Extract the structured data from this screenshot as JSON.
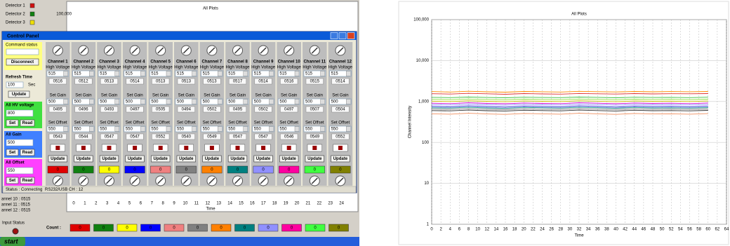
{
  "window": {
    "detectors": [
      {
        "label": "Detector 1",
        "color": "#d01010"
      },
      {
        "label": "Detector 2",
        "color": "#108010"
      },
      {
        "label": "Detector 3",
        "color": "#f0e000"
      }
    ],
    "plot_title": "All Plots",
    "plot_ytick": "100,000",
    "plot_xticks": [
      "0",
      "1",
      "2",
      "3",
      "4",
      "5",
      "6",
      "7",
      "8",
      "9",
      "10",
      "11",
      "12",
      "13",
      "14",
      "15",
      "16",
      "17",
      "18",
      "19",
      "20",
      "21",
      "22",
      "23",
      "24"
    ],
    "plot_xlabel": "Time",
    "channel_list": [
      "annel 10 : 0515",
      "annel 11 : 0515",
      "annel 12 : 0515"
    ],
    "input_status": "Input Status",
    "count_label": "Count :",
    "taskbar_start": "start"
  },
  "control_panel": {
    "title": "Control Panel",
    "command_status": "Command status",
    "disconnect": "Disconnect",
    "refresh_time": "Refresh Time",
    "refresh_value": "100",
    "sec": "Sec",
    "update": "Update",
    "set": "Set",
    "read": "Read",
    "voltage_label": "All HV voltage",
    "voltage_value": "800",
    "gain_label": "All Gain",
    "gain_value": "500",
    "offset_label": "All Offset",
    "offset_value": "550",
    "hv_label": "High Voltage",
    "set_gain_label": "Set Gain",
    "set_offset_label": "Set Offset",
    "status": "Status : Connecting",
    "port": "RS232/USB CH : 12",
    "channels": [
      {
        "name": "Channel 1",
        "hv": "515",
        "hv_read": "0516",
        "gain": "500",
        "gain_read": "0495",
        "offset": "550",
        "offset_read": "0543",
        "swatch": "0",
        "color": "#e00000"
      },
      {
        "name": "Channel 2",
        "hv": "515",
        "hv_read": "0512",
        "gain": "500",
        "gain_read": "0496",
        "offset": "550",
        "offset_read": "0544",
        "swatch": "0",
        "color": "#108010"
      },
      {
        "name": "Channel 3",
        "hv": "515",
        "hv_read": "0513",
        "gain": "500",
        "gain_read": "0493",
        "offset": "550",
        "offset_read": "0547",
        "swatch": "0",
        "color": "#ffff00"
      },
      {
        "name": "Channel 4",
        "hv": "515",
        "hv_read": "0514",
        "gain": "500",
        "gain_read": "0497",
        "offset": "550",
        "offset_read": "0547",
        "swatch": "0",
        "color": "#0000ff"
      },
      {
        "name": "Channel 5",
        "hv": "515",
        "hv_read": "0513",
        "gain": "500",
        "gain_read": "0505",
        "offset": "550",
        "offset_read": "0552",
        "swatch": "0",
        "color": "#f08080"
      },
      {
        "name": "Channel 6",
        "hv": "515",
        "hv_read": "0513",
        "gain": "500",
        "gain_read": "0494",
        "offset": "550",
        "offset_read": "0540",
        "swatch": "0",
        "color": "#808080"
      },
      {
        "name": "Channel 7",
        "hv": "515",
        "hv_read": "0513",
        "gain": "500",
        "gain_read": "0502",
        "offset": "550",
        "offset_read": "0549",
        "swatch": "0",
        "color": "#ff8000"
      },
      {
        "name": "Channel 8",
        "hv": "515",
        "hv_read": "0517",
        "gain": "500",
        "gain_read": "0495",
        "offset": "550",
        "offset_read": "0547",
        "swatch": "0",
        "color": "#008080"
      },
      {
        "name": "Channel 9",
        "hv": "515",
        "hv_read": "0514",
        "gain": "500",
        "gain_read": "0502",
        "offset": "550",
        "offset_read": "0547",
        "swatch": "0",
        "color": "#9090ff"
      },
      {
        "name": "Channel 10",
        "hv": "515",
        "hv_read": "0516",
        "gain": "500",
        "gain_read": "0497",
        "offset": "550",
        "offset_read": "0546",
        "swatch": "0",
        "color": "#ff00a0"
      },
      {
        "name": "Channel 11",
        "hv": "515",
        "hv_read": "0515",
        "gain": "500",
        "gain_read": "0507",
        "offset": "550",
        "offset_read": "0549",
        "swatch": "0",
        "color": "#40ff40"
      },
      {
        "name": "Channel 12",
        "hv": "515",
        "hv_read": "0514",
        "gain": "500",
        "gain_read": "0504",
        "offset": "550",
        "offset_read": "0552",
        "swatch": "0",
        "color": "#808000"
      }
    ]
  },
  "chart_data": {
    "type": "line",
    "title": "All Plots",
    "x_label": "Time",
    "y_label": "Channel Intensity",
    "log_y": true,
    "grid": true,
    "xlim": [
      0,
      64
    ],
    "xticks": [
      0,
      2,
      4,
      6,
      8,
      10,
      12,
      14,
      16,
      18,
      20,
      22,
      24,
      26,
      28,
      30,
      32,
      34,
      36,
      38,
      40,
      42,
      44,
      46,
      48,
      50,
      52,
      54,
      56,
      58,
      60,
      62,
      64
    ],
    "ylim": [
      1,
      100000
    ],
    "yticks": [
      1,
      10,
      100,
      {
        "value": 1000,
        "label": "1,000"
      },
      {
        "value": 10000,
        "label": "10,000"
      },
      {
        "value": 100000,
        "label": "100,000"
      }
    ],
    "x": [
      0,
      4,
      8,
      12,
      16,
      20,
      24,
      28,
      32,
      36,
      40,
      44,
      48,
      52,
      56,
      60
    ],
    "series": [
      {
        "color": "#ff8c00",
        "values": [
          1750,
          1700,
          1780,
          1720,
          1690,
          1760,
          1730,
          1700,
          1770,
          1740,
          1710,
          1760,
          1720,
          1750,
          1730,
          1760
        ]
      },
      {
        "color": "#e03030",
        "values": [
          1550,
          1520,
          1580,
          1540,
          1500,
          1560,
          1530,
          1510,
          1570,
          1540,
          1520,
          1560,
          1530,
          1550,
          1540,
          1560
        ]
      },
      {
        "color": "#40c040",
        "values": [
          1260,
          1240,
          1280,
          1250,
          1230,
          1270,
          1250,
          1240,
          1280,
          1260,
          1230,
          1270,
          1250,
          1260,
          1240,
          1270
        ]
      },
      {
        "color": "#90e040",
        "values": [
          1130,
          1110,
          1150,
          1120,
          1100,
          1140,
          1120,
          1110,
          1150,
          1130,
          1100,
          1140,
          1120,
          1130,
          1110,
          1140
        ]
      },
      {
        "color": "#d0c000",
        "values": [
          1020,
          1000,
          1040,
          1010,
          990,
          1030,
          1010,
          1000,
          1040,
          1020,
          990,
          1030,
          1010,
          1020,
          1000,
          1030
        ]
      },
      {
        "color": "#d000d0",
        "values": [
          910,
          890,
          930,
          900,
          880,
          920,
          900,
          890,
          930,
          910,
          880,
          920,
          900,
          910,
          890,
          920
        ]
      },
      {
        "color": "#9090ff",
        "values": [
          840,
          820,
          860,
          830,
          810,
          850,
          830,
          820,
          860,
          840,
          810,
          850,
          830,
          840,
          820,
          850
        ]
      },
      {
        "color": "#2020d0",
        "values": [
          760,
          740,
          780,
          750,
          730,
          770,
          750,
          740,
          780,
          760,
          730,
          770,
          750,
          760,
          740,
          770
        ]
      },
      {
        "color": "#008080",
        "values": [
          700,
          690,
          720,
          695,
          680,
          715,
          700,
          690,
          720,
          705,
          685,
          715,
          695,
          700,
          690,
          710
        ]
      },
      {
        "color": "#808080",
        "values": [
          650,
          640,
          665,
          645,
          630,
          660,
          645,
          640,
          665,
          650,
          635,
          660,
          645,
          650,
          640,
          655
        ]
      },
      {
        "color": "#303030",
        "values": [
          600,
          590,
          615,
          595,
          585,
          610,
          600,
          590,
          615,
          600,
          585,
          610,
          595,
          600,
          590,
          605
        ]
      },
      {
        "color": "#f09060",
        "values": [
          500,
          490,
          515,
          495,
          485,
          510,
          500,
          490,
          515,
          500,
          485,
          510,
          495,
          500,
          490,
          505
        ]
      }
    ]
  }
}
